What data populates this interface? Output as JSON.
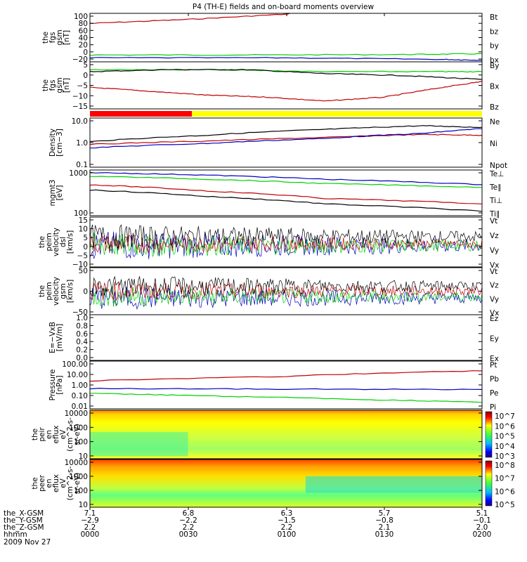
{
  "title": "P4 (TH-E) fields and on-board moments overview",
  "colors": {
    "black": "#000000",
    "red": "#c00000",
    "green": "#00d000",
    "blue": "#0000c0",
    "yellow": "#ffff00",
    "bar_red": "#ff0000"
  },
  "chart_data": [
    {
      "type": "line",
      "ylabel": [
        "the",
        "fgs",
        "gsm",
        "[nT]"
      ],
      "yticks": [
        "100",
        "80",
        "60",
        "40",
        "20",
        "0",
        "−20"
      ],
      "yrange": [
        -20,
        100
      ],
      "legend": [
        {
          "name": "Bt",
          "color": "black"
        },
        {
          "name": "bz",
          "color": "red"
        },
        {
          "name": "by",
          "color": "green"
        },
        {
          "name": "bx",
          "color": "blue"
        }
      ],
      "series": [
        {
          "name": "bz",
          "color": "red",
          "x": [
            0,
            0.25,
            0.5,
            0.51
          ],
          "y": [
            75,
            85,
            98,
            100
          ]
        },
        {
          "name": "by",
          "color": "green",
          "x": [
            0,
            0.4,
            0.8,
            1.0
          ],
          "y": [
            -3,
            -3,
            -2,
            0
          ]
        },
        {
          "name": "bx",
          "color": "blue",
          "x": [
            0,
            0.5,
            0.9,
            1.0
          ],
          "y": [
            -10,
            -10,
            -14,
            -16
          ]
        }
      ]
    },
    {
      "type": "line",
      "ylabel": [
        "the",
        "fgs",
        "gsm",
        "[nT]"
      ],
      "yticks": [
        "5",
        "0",
        "−5",
        "−10",
        "−15"
      ],
      "yrange": [
        -17,
        7
      ],
      "legend": [
        {
          "name": "By",
          "color": "green"
        },
        {
          "name": "Bx",
          "color": "black"
        },
        {
          "name": "Bz",
          "color": "red"
        }
      ],
      "series": [
        {
          "name": "By",
          "color": "green",
          "x": [
            0,
            0.3,
            0.6,
            0.9,
            1.0
          ],
          "y": [
            3,
            3,
            2,
            2,
            2
          ]
        },
        {
          "name": "Bx",
          "color": "black",
          "x": [
            0,
            0.2,
            0.4,
            0.6,
            0.8,
            1.0
          ],
          "y": [
            2,
            3,
            3,
            1,
            0,
            -2
          ]
        },
        {
          "name": "Bz",
          "color": "red",
          "x": [
            0,
            0.15,
            0.3,
            0.45,
            0.6,
            0.75,
            0.9,
            1.0
          ],
          "y": [
            -6,
            -8,
            -10,
            -11,
            -13,
            -11,
            -6,
            -3
          ]
        }
      ]
    },
    {
      "type": "bar",
      "name": "status-bar",
      "segments": [
        {
          "from": 0,
          "to": 0.26,
          "color": "bar_red"
        },
        {
          "from": 0.26,
          "to": 1,
          "color": "yellow"
        }
      ]
    },
    {
      "type": "line",
      "log": true,
      "ylabel": [
        "Density",
        "[cm−3]"
      ],
      "yticks": [
        "10.0",
        "1.0",
        "0.1"
      ],
      "ylog": [
        -1,
        1.15
      ],
      "legend": [
        {
          "name": "Ne",
          "color": "red"
        },
        {
          "name": "Ni",
          "color": "black"
        },
        {
          "name": "Npot",
          "color": "blue"
        }
      ],
      "series": [
        {
          "name": "Ni",
          "color": "black",
          "x": [
            0,
            0.3,
            0.6,
            0.85,
            1.0
          ],
          "y": [
            1.3,
            2.5,
            4.5,
            6.5,
            5.5
          ]
        },
        {
          "name": "Ne",
          "color": "red",
          "x": [
            0,
            0.3,
            0.6,
            0.85,
            1.0
          ],
          "y": [
            1.0,
            1.4,
            2.0,
            2.7,
            2.5
          ]
        },
        {
          "name": "Npot",
          "color": "blue",
          "x": [
            0,
            0.3,
            0.6,
            0.85,
            1.0
          ],
          "y": [
            0.7,
            1.1,
            1.8,
            3.0,
            4.8
          ]
        }
      ]
    },
    {
      "type": "line",
      "log": true,
      "ylabel": [
        "mgmt3",
        "[eV]"
      ],
      "yticks": [
        "1000",
        "100"
      ],
      "ylog": [
        1.7,
        3.55
      ],
      "legend": [
        {
          "name": "Te⊥",
          "color": "red"
        },
        {
          "name": "Te∥",
          "color": "black"
        },
        {
          "name": "Ti⊥",
          "color": "blue"
        },
        {
          "name": "Ti∥",
          "color": "green"
        }
      ],
      "series": [
        {
          "name": "Ti⊥",
          "color": "blue",
          "x": [
            0,
            0.3,
            0.6,
            1.0
          ],
          "y": [
            2800,
            2200,
            1500,
            900
          ]
        },
        {
          "name": "Ti∥",
          "color": "green",
          "x": [
            0,
            0.3,
            0.6,
            1.0
          ],
          "y": [
            2000,
            1500,
            1000,
            700
          ]
        },
        {
          "name": "Te⊥",
          "color": "red",
          "x": [
            0,
            0.3,
            0.6,
            1.0
          ],
          "y": [
            900,
            500,
            250,
            150
          ]
        },
        {
          "name": "Te∥",
          "color": "black",
          "x": [
            0,
            0.3,
            0.6,
            1.0
          ],
          "y": [
            550,
            300,
            150,
            75
          ]
        }
      ]
    },
    {
      "type": "line",
      "ylabel": [
        "the",
        "peim",
        "velocity",
        "dsl",
        "[km/s]"
      ],
      "yticks": [
        "15",
        "10",
        "5",
        "0",
        "−5",
        "−10"
      ],
      "yrange": [
        -12,
        16
      ],
      "legend": [
        {
          "name": "Vt",
          "color": "black"
        },
        {
          "name": "Vz",
          "color": "red"
        },
        {
          "name": "Vy",
          "color": "green"
        },
        {
          "name": "Vx",
          "color": "blue"
        }
      ],
      "noise": [
        {
          "color": "blue",
          "base": 0,
          "amp": 6
        },
        {
          "color": "green",
          "base": 0,
          "amp": 5
        },
        {
          "color": "red",
          "base": 1,
          "amp": 4
        },
        {
          "color": "black",
          "base": 5,
          "amp": 5
        }
      ]
    },
    {
      "type": "line",
      "ylabel": [
        "the",
        "peim",
        "velocity",
        "gsm",
        "[km/s]"
      ],
      "yticks": [
        "50",
        "0",
        "−50"
      ],
      "yrange": [
        -60,
        75
      ],
      "legend": [
        {
          "name": "Vt",
          "color": "black"
        },
        {
          "name": "Vz",
          "color": "red"
        },
        {
          "name": "Vy",
          "color": "green"
        },
        {
          "name": "Vx",
          "color": "blue"
        }
      ],
      "noise": [
        {
          "color": "blue",
          "base": -12,
          "amp": 25
        },
        {
          "color": "green",
          "base": -8,
          "amp": 22
        },
        {
          "color": "red",
          "base": 8,
          "amp": 20
        },
        {
          "color": "black",
          "base": 22,
          "amp": 22
        }
      ]
    },
    {
      "type": "line",
      "ylabel": [
        "E=−VxB",
        "[mV/m]"
      ],
      "yticks": [
        "1.0",
        "0.8",
        "0.6",
        "0.4",
        "0.2",
        "0.0"
      ],
      "yrange": [
        0,
        1
      ],
      "legend": [
        {
          "name": "Ez",
          "color": "red"
        },
        {
          "name": "Ey",
          "color": "green"
        },
        {
          "name": "Ex",
          "color": "blue"
        }
      ]
    },
    {
      "type": "line",
      "log": true,
      "ylabel": [
        "Pressure",
        "[nPa]"
      ],
      "yticks": [
        "100.00",
        "10.00",
        "1.00",
        "0.10",
        "0.01"
      ],
      "ylog": [
        -2,
        2
      ],
      "legend": [
        {
          "name": "Pt",
          "color": "black"
        },
        {
          "name": "Pb",
          "color": "red"
        },
        {
          "name": "Pe",
          "color": "green"
        },
        {
          "name": "Pi",
          "color": "blue"
        }
      ],
      "series": [
        {
          "name": "Pb",
          "color": "red",
          "x": [
            0,
            0.5,
            1.0
          ],
          "y": [
            2.2,
            5,
            15
          ]
        },
        {
          "name": "Pi",
          "color": "blue",
          "x": [
            0,
            0.5,
            1.0
          ],
          "y": [
            0.5,
            0.45,
            0.42
          ]
        },
        {
          "name": "Pe",
          "color": "green",
          "x": [
            0,
            0.3,
            0.7,
            1.0
          ],
          "y": [
            0.2,
            0.12,
            0.06,
            0.035
          ]
        }
      ]
    },
    {
      "type": "heatmap",
      "ylabel": [
        "the",
        "peir",
        "en",
        "eflux",
        "eV",
        "(cm^2-s-",
        "sr-eV)"
      ],
      "yticks": [
        "10000",
        "1000",
        "100",
        "10"
      ],
      "colorbar": [
        "10^7",
        "10^6",
        "10^5",
        "10^4",
        "10^3"
      ]
    },
    {
      "type": "heatmap",
      "ylabel": [
        "the",
        "peer",
        "en",
        "eflux",
        "eV",
        "(cm^2-s-",
        "sr-eV)"
      ],
      "yticks": [
        "10000",
        "1000",
        "100",
        "10"
      ],
      "colorbar": [
        "10^8",
        "10^7",
        "10^6",
        "10^5"
      ]
    }
  ],
  "xaxis": {
    "rows": [
      {
        "label": "the_X-GSM",
        "values": [
          "7.1",
          "6.8",
          "6.3",
          "5.7",
          "5.1"
        ]
      },
      {
        "label": "the_Y-GSM",
        "values": [
          "−2.9",
          "−2.2",
          "−1.5",
          "−0.8",
          "−0.1"
        ]
      },
      {
        "label": "the_Z-GSM",
        "values": [
          "2.2",
          "2.2",
          "2.2",
          "2.1",
          "2.0"
        ]
      },
      {
        "label": "hhmm",
        "values": [
          "0000",
          "0030",
          "0100",
          "0130",
          "0200"
        ]
      }
    ],
    "date": "2009 Nov 27"
  }
}
